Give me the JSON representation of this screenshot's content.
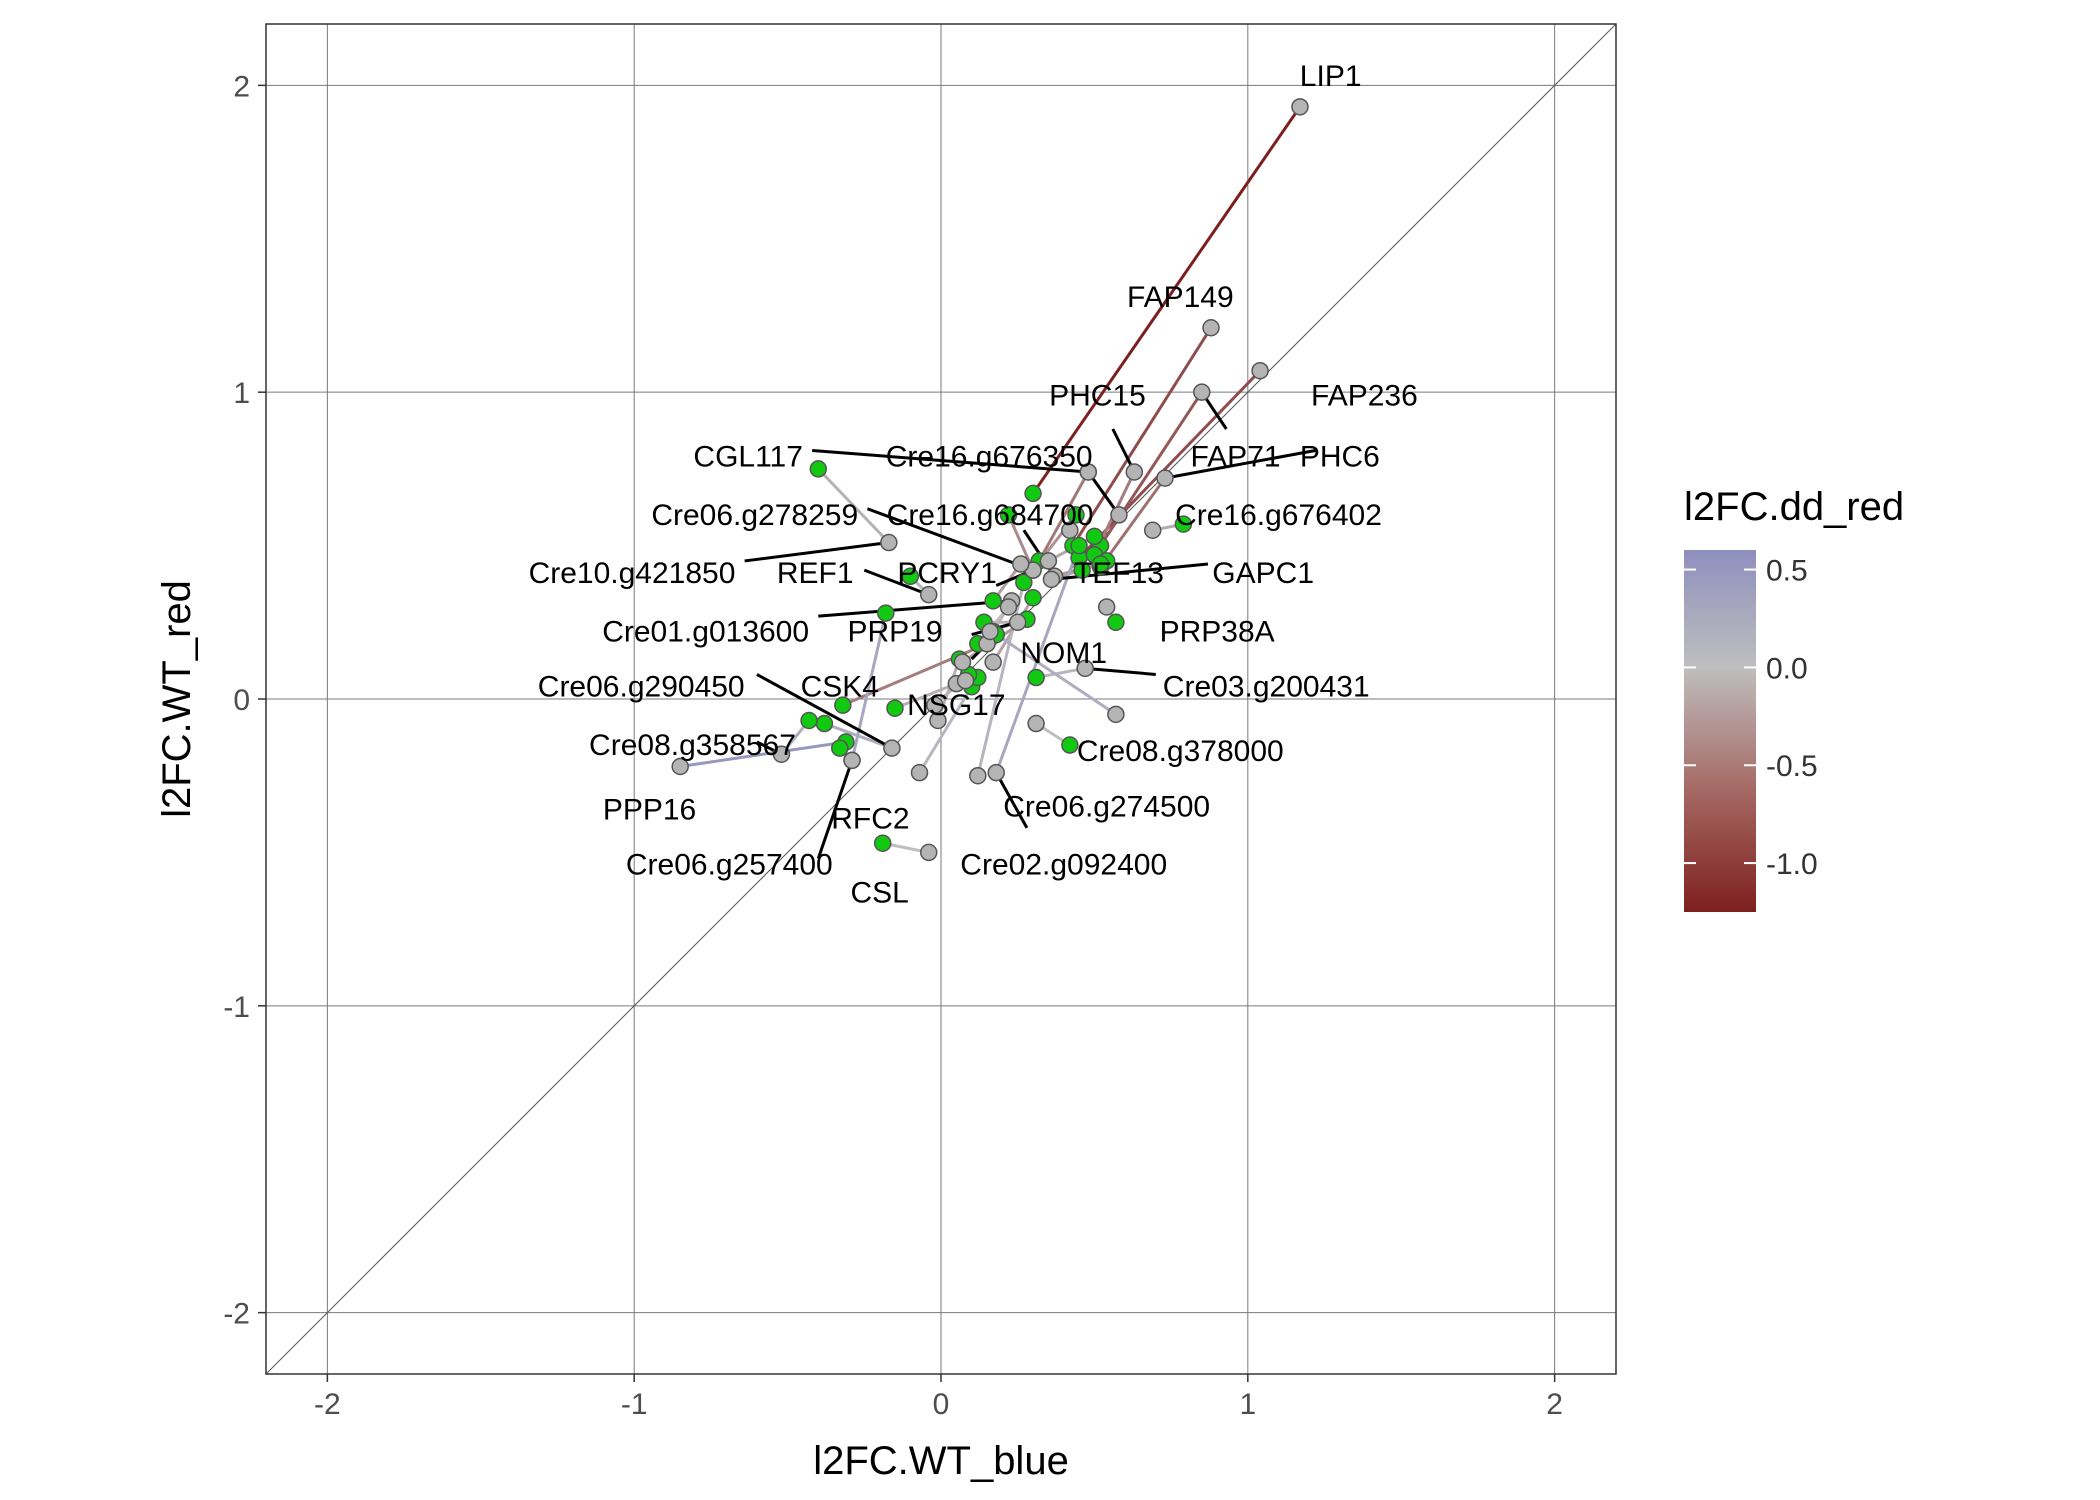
{
  "chart_data": {
    "type": "scatter",
    "xlabel": "l2FC.WT_blue",
    "ylabel": "l2FC.WT_red",
    "xlim": [
      -2.2,
      2.2
    ],
    "ylim": [
      -2.2,
      2.2
    ],
    "xticks": [
      -2,
      -1,
      0,
      1,
      2
    ],
    "yticks": [
      -2,
      -1,
      0,
      1,
      2
    ],
    "grid": true,
    "diagonal_reference_line": true,
    "legend": {
      "title": "l2FC.dd_red",
      "type": "colorbar",
      "range": [
        -1.25,
        0.6
      ],
      "ticks": [
        0.5,
        0.0,
        -0.5,
        -1.0
      ],
      "tick_labels": [
        "0.5",
        "0.0",
        "-0.5",
        "-1.0"
      ],
      "colors": {
        "high": "#8f8fbf",
        "mid": "#bebebe",
        "low": "#7d1f1f"
      },
      "placement": "right"
    },
    "point_colors": {
      "WT": "#b4b4b4",
      "dd": "#12c912"
    },
    "pairs": [
      {
        "label": "LIP1",
        "wt": [
          1.17,
          1.93
        ],
        "dd": [
          0.3,
          0.67
        ],
        "c": -1.25,
        "lab": [
          1.27,
          2.03
        ],
        "anchor": "middle"
      },
      {
        "label": "FAP149",
        "wt": [
          0.88,
          1.21
        ],
        "dd": [
          0.43,
          0.5
        ],
        "c": -0.9,
        "lab": [
          0.78,
          1.31
        ],
        "anchor": "middle"
      },
      {
        "label": "FAP236",
        "wt": [
          1.04,
          1.07
        ],
        "dd": [
          0.45,
          0.46
        ],
        "c": -0.9,
        "lab": [
          1.38,
          0.99
        ],
        "anchor": "middle"
      },
      {
        "label": "FAP71",
        "wt": [
          0.85,
          1.0
        ],
        "dd": [
          0.52,
          0.5
        ],
        "c": -0.8,
        "lab": [
          0.96,
          0.79
        ],
        "anchor": "middle",
        "leader": [
          0.93,
          0.88
        ]
      },
      {
        "label": "PHC15",
        "wt": [
          0.63,
          0.74
        ],
        "dd": [
          0.5,
          0.47
        ],
        "c": -0.5,
        "lab": [
          0.51,
          0.99
        ],
        "anchor": "middle",
        "leader": [
          0.56,
          0.88
        ]
      },
      {
        "label": "PHC6",
        "wt": [
          0.73,
          0.72
        ],
        "dd": [
          0.52,
          0.43
        ],
        "c": -0.6,
        "lab": [
          1.3,
          0.79
        ],
        "anchor": "middle",
        "leader": [
          1.22,
          0.81
        ]
      },
      {
        "label": "CGL117",
        "wt": [
          0.48,
          0.74
        ],
        "dd": [
          0.32,
          0.45
        ],
        "c": -0.55,
        "lab": [
          -0.45,
          0.79
        ],
        "anchor": "end",
        "leader": [
          -0.42,
          0.81
        ]
      },
      {
        "label": "Cre16.g676350",
        "wt": [
          0.58,
          0.6
        ],
        "dd": [
          0.48,
          0.74
        ],
        "c": -0.4,
        "lab": [
          -0.18,
          0.79
        ],
        "anchor": "start",
        "leader": [
          0.48,
          0.74
        ]
      },
      {
        "label": "Cre06.g278259",
        "wt": [
          0.3,
          0.42
        ],
        "dd": [
          0.44,
          0.6
        ],
        "c": -0.35,
        "lab": [
          -0.27,
          0.6
        ],
        "anchor": "end",
        "leader": [
          -0.24,
          0.62
        ]
      },
      {
        "label": "Cre16.g684700",
        "wt": [
          0.37,
          0.4
        ],
        "dd": [
          0.54,
          0.45
        ],
        "c": -0.3,
        "lab": [
          0.16,
          0.6
        ],
        "anchor": "middle",
        "leader": [
          0.27,
          0.55
        ]
      },
      {
        "label": "Cre16.g676402",
        "wt": [
          0.69,
          0.55
        ],
        "dd": [
          0.79,
          0.57
        ],
        "c": -0.15,
        "lab": [
          1.1,
          0.6
        ],
        "anchor": "middle"
      },
      {
        "label": "Cre10.g421850",
        "wt": [
          -0.17,
          0.51
        ],
        "dd": [
          -0.4,
          0.75
        ],
        "c": -0.1,
        "lab": [
          -0.67,
          0.41
        ],
        "anchor": "end",
        "leader": [
          -0.64,
          0.45
        ]
      },
      {
        "label": "REF1",
        "wt": [
          -0.04,
          0.34
        ],
        "dd": [
          -0.1,
          0.4
        ],
        "c": 0.1,
        "lab": [
          -0.41,
          0.41
        ],
        "anchor": "middle",
        "leader": [
          -0.25,
          0.42
        ]
      },
      {
        "label": "PCRY1",
        "wt": [
          0.3,
          0.42
        ],
        "dd": [
          0.22,
          0.6
        ],
        "c": -0.4,
        "lab": [
          0.02,
          0.41
        ],
        "anchor": "middle",
        "leader": [
          0.18,
          0.37
        ]
      },
      {
        "label": "TEF13",
        "wt": [
          0.42,
          0.55
        ],
        "dd": [
          0.46,
          0.42
        ],
        "c": -0.2,
        "lab": [
          0.58,
          0.41
        ],
        "anchor": "middle"
      },
      {
        "label": "GAPC1",
        "wt": [
          0.36,
          0.39
        ],
        "dd": [
          0.52,
          0.44
        ],
        "c": -0.25,
        "lab": [
          1.05,
          0.41
        ],
        "anchor": "middle",
        "leader": [
          0.87,
          0.44
        ]
      },
      {
        "label": "Cre01.g013600",
        "wt": [
          0.23,
          0.32
        ],
        "dd": [
          0.17,
          0.22
        ],
        "c": -0.1,
        "lab": [
          -0.43,
          0.22
        ],
        "anchor": "end",
        "leader": [
          -0.4,
          0.27
        ]
      },
      {
        "label": "PRP19",
        "wt": [
          0.25,
          0.25
        ],
        "dd": [
          0.14,
          0.25
        ],
        "c": -0.1,
        "lab": [
          -0.15,
          0.22
        ],
        "anchor": "middle",
        "leader": [
          0.1,
          0.21
        ]
      },
      {
        "label": "NOM1",
        "wt": [
          0.17,
          0.12
        ],
        "dd": [
          0.3,
          0.33
        ],
        "c": -0.2,
        "lab": [
          0.4,
          0.15
        ],
        "anchor": "middle"
      },
      {
        "label": "PRP38A",
        "wt": [
          0.54,
          0.3
        ],
        "dd": [
          0.57,
          0.25
        ],
        "c": -0.05,
        "lab": [
          0.9,
          0.22
        ],
        "anchor": "middle"
      },
      {
        "label": "Cre03.g200431",
        "wt": [
          0.47,
          0.1
        ],
        "dd": [
          0.31,
          0.07
        ],
        "c": 0.1,
        "lab": [
          1.06,
          0.04
        ],
        "anchor": "middle",
        "leader": [
          0.7,
          0.08
        ]
      },
      {
        "label": "Cre06.g290450",
        "wt": [
          -0.16,
          -0.16
        ],
        "dd": [
          -0.38,
          -0.08
        ],
        "c": 0.2,
        "lab": [
          -0.64,
          0.04
        ],
        "anchor": "end",
        "leader": [
          -0.6,
          0.08
        ]
      },
      {
        "label": "CSK4",
        "wt": [
          0.15,
          0.18
        ],
        "dd": [
          -0.32,
          -0.02
        ],
        "c": -0.5,
        "lab": [
          -0.33,
          0.04
        ],
        "anchor": "middle",
        "leader": [
          0.1,
          0.13
        ]
      },
      {
        "label": "NSG17",
        "wt": [
          0.05,
          0.05
        ],
        "dd": [
          -0.15,
          -0.03
        ],
        "c": -0.1,
        "lab": [
          0.05,
          -0.02
        ],
        "anchor": "middle"
      },
      {
        "label": "Cre08.g358567",
        "wt": [
          -0.52,
          -0.18
        ],
        "dd": [
          -0.43,
          -0.07
        ],
        "c": 0.2,
        "lab": [
          -0.81,
          -0.15
        ],
        "anchor": "middle",
        "leader": [
          -0.6,
          -0.14
        ]
      },
      {
        "label": "Cre08.g378000",
        "wt": [
          0.31,
          -0.08
        ],
        "dd": [
          0.42,
          -0.15
        ],
        "c": 0.0,
        "lab": [
          0.78,
          -0.17
        ],
        "anchor": "middle"
      },
      {
        "label": "PPP16",
        "wt": [
          -0.85,
          -0.22
        ],
        "dd": [
          -0.31,
          -0.14
        ],
        "c": 0.5,
        "lab": [
          -0.95,
          -0.36
        ],
        "anchor": "middle"
      },
      {
        "label": "RFC2",
        "wt": [
          -0.29,
          -0.2
        ],
        "dd": [
          -0.33,
          -0.16
        ],
        "c": 0.0,
        "lab": [
          -0.23,
          -0.39
        ],
        "anchor": "middle"
      },
      {
        "label": "Cre06.g274500",
        "wt": [
          0.18,
          -0.24
        ],
        "dd": [
          0.45,
          0.5
        ],
        "c": 0.3,
        "lab": [
          0.54,
          -0.35
        ],
        "anchor": "middle",
        "leader": [
          0.28,
          -0.42
        ]
      },
      {
        "label": "Cre06.g257400",
        "wt": [
          -0.29,
          -0.2
        ],
        "dd": [
          -0.18,
          0.28
        ],
        "c": 0.3,
        "lab": [
          -0.69,
          -0.54
        ],
        "anchor": "middle",
        "leader": [
          -0.4,
          -0.52
        ]
      },
      {
        "label": "CSL",
        "wt": [
          -0.04,
          -0.5
        ],
        "dd": [
          -0.19,
          -0.47
        ],
        "c": 0.0,
        "lab": [
          -0.2,
          -0.63
        ],
        "anchor": "middle"
      },
      {
        "label": "Cre02.g092400",
        "wt": [
          0.12,
          -0.25
        ],
        "dd": [
          0.27,
          0.38
        ],
        "c": 0.1,
        "lab": [
          0.4,
          -0.54
        ],
        "anchor": "middle"
      }
    ],
    "extra_pairs": [
      {
        "wt": [
          -0.07,
          -0.24
        ],
        "dd": [
          0.1,
          0.04
        ],
        "c": 0.1
      },
      {
        "wt": [
          0.26,
          0.44
        ],
        "dd": [
          0.17,
          0.32
        ],
        "c": -0.25
      },
      {
        "wt": [
          0.08,
          0.06
        ],
        "dd": [
          0.12,
          0.07
        ],
        "c": 0.0
      },
      {
        "wt": [
          0.57,
          -0.05
        ],
        "dd": [
          0.18,
          0.21
        ],
        "c": 0.2
      },
      {
        "wt": [
          0.22,
          0.3
        ],
        "dd": [
          0.12,
          0.18
        ],
        "c": 0.0
      },
      {
        "wt": [
          -0.01,
          -0.07
        ],
        "dd": [
          0.06,
          0.13
        ],
        "c": -0.1
      },
      {
        "wt": [
          0.35,
          0.45
        ],
        "dd": [
          0.5,
          0.53
        ],
        "c": -0.2
      },
      {
        "wt": [
          0.07,
          0.12
        ],
        "dd": [
          0.28,
          0.26
        ],
        "c": -0.3
      },
      {
        "wt": [
          -0.02,
          -0.02
        ],
        "dd": [
          0.09,
          0.08
        ],
        "c": -0.1
      },
      {
        "wt": [
          0.16,
          0.22
        ],
        "dd": [
          0.28,
          0.26
        ],
        "c": -0.05
      }
    ]
  }
}
